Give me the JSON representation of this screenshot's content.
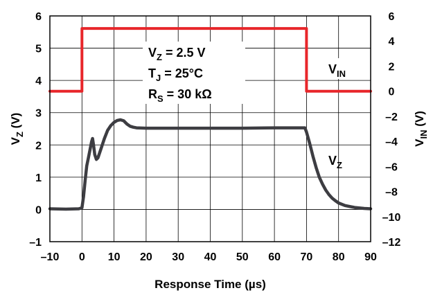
{
  "chart_data": {
    "type": "line",
    "xlabel": "Response Time (µs)",
    "ylabel_left": {
      "base": "V",
      "sub": "Z",
      "suffix": " (V)"
    },
    "ylabel_right": {
      "base": "V",
      "sub": "IN",
      "suffix": " (V)"
    },
    "xlim": [
      -10,
      90
    ],
    "ylim_left": [
      -1,
      6
    ],
    "ylim_right": [
      -12,
      6
    ],
    "x_ticks": [
      -10,
      0,
      10,
      20,
      30,
      40,
      50,
      60,
      70,
      80,
      90
    ],
    "x_tick_labels": [
      "–10",
      "0",
      "10",
      "20",
      "30",
      "40",
      "50",
      "60",
      "70",
      "80",
      "90"
    ],
    "y_left_ticks": [
      -1,
      0,
      1,
      2,
      3,
      4,
      5,
      6
    ],
    "y_left_tick_labels": [
      "–1",
      "0",
      "1",
      "2",
      "3",
      "4",
      "5",
      "6"
    ],
    "y_right_ticks": [
      -12,
      -10,
      -8,
      -6,
      -4,
      -2,
      0,
      2,
      4,
      6
    ],
    "y_right_tick_labels": [
      "–12",
      "–10",
      "–8",
      "–6",
      "–4",
      "–2",
      "0",
      "2",
      "4",
      "6"
    ],
    "grid": true,
    "annotations": [
      {
        "base": "V",
        "sub": "Z",
        "rest": " = 2.5 V"
      },
      {
        "base": "T",
        "sub": "J",
        "rest": " = 25°C"
      },
      {
        "base": "R",
        "sub": "S",
        "rest": " = 30 kΩ"
      }
    ],
    "series": [
      {
        "name": "V_IN",
        "label": {
          "base": "V",
          "sub": "IN"
        },
        "axis": "right",
        "color": "#e8262a",
        "x": [
          -10,
          0,
          0,
          70,
          70,
          90
        ],
        "y": [
          0,
          0,
          5,
          5,
          0,
          0
        ]
      },
      {
        "name": "V_Z",
        "label": {
          "base": "V",
          "sub": "Z"
        },
        "axis": "left",
        "color": "#3d3d42",
        "x": [
          -10,
          -5,
          -1,
          0,
          0.5,
          1,
          1.5,
          2,
          2.5,
          3,
          3.3,
          3.6,
          4,
          4.5,
          5,
          6,
          7,
          8,
          9,
          10,
          11,
          12,
          13,
          14,
          15,
          16,
          17,
          20,
          30,
          40,
          50,
          60,
          69.5,
          70,
          71,
          72,
          73,
          74,
          75,
          76,
          77,
          78,
          79,
          80,
          82,
          85,
          88,
          90
        ],
        "y": [
          0.02,
          0.01,
          0.02,
          0.05,
          0.4,
          0.9,
          1.35,
          1.6,
          1.85,
          2.1,
          2.2,
          2.0,
          1.7,
          1.55,
          1.6,
          1.9,
          2.2,
          2.45,
          2.6,
          2.7,
          2.76,
          2.78,
          2.75,
          2.65,
          2.58,
          2.55,
          2.53,
          2.52,
          2.52,
          2.52,
          2.52,
          2.53,
          2.53,
          2.4,
          2.05,
          1.65,
          1.3,
          1.0,
          0.78,
          0.6,
          0.46,
          0.35,
          0.27,
          0.2,
          0.12,
          0.06,
          0.03,
          0.02
        ]
      }
    ]
  }
}
